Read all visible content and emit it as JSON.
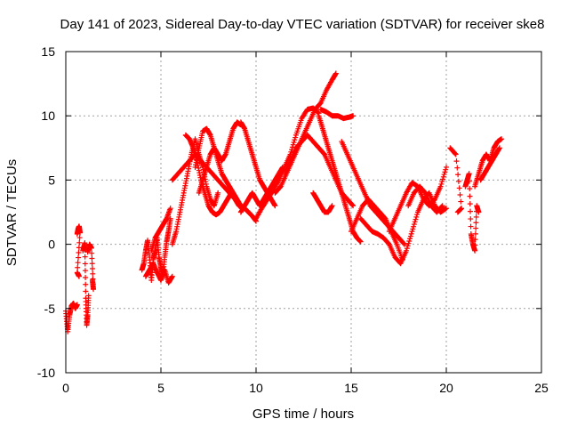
{
  "chart_data": {
    "type": "scatter",
    "title": "Day 141 of 2023, Sidereal Day-to-day VTEC variation (SDTVAR) for receiver ske8",
    "xlabel": "GPS time / hours",
    "ylabel": "SDTVAR / TECUs",
    "xlim": [
      0,
      25
    ],
    "ylim": [
      -10,
      15
    ],
    "xticks": [
      0,
      5,
      10,
      15,
      20,
      25
    ],
    "yticks": [
      -10,
      -5,
      0,
      5,
      10,
      15
    ],
    "grid": true,
    "marker": "+",
    "color": "#ff0000",
    "segments": [
      {
        "x": [
          0.0,
          0.1,
          0.2,
          0.3,
          0.4,
          0.5,
          0.6
        ],
        "y": [
          -5.2,
          -6.8,
          -5.5,
          -4.8,
          -4.6,
          -5.0,
          -4.7
        ]
      },
      {
        "x": [
          0.6,
          0.65,
          0.7,
          0.75,
          0.6,
          0.7
        ],
        "y": [
          0.8,
          1.2,
          1.4,
          0.9,
          -2.2,
          -2.5
        ]
      },
      {
        "x": [
          0.9,
          1.0,
          1.05,
          1.1,
          1.15,
          1.2
        ],
        "y": [
          -0.5,
          0.1,
          -4.2,
          -6.3,
          -5.5,
          -4.0
        ]
      },
      {
        "x": [
          1.15,
          1.25,
          1.35,
          1.45,
          1.4
        ],
        "y": [
          -0.6,
          0.0,
          -0.3,
          -3.5,
          -2.8
        ]
      },
      {
        "x": [
          4.0,
          4.1,
          4.2,
          4.3,
          4.4,
          4.5,
          4.6,
          4.7,
          4.8,
          4.9,
          5.0,
          5.1,
          5.2,
          5.3,
          5.4,
          5.5
        ],
        "y": [
          -2.0,
          -1.5,
          -0.5,
          0.3,
          -1.0,
          -2.8,
          -1.2,
          -0.5,
          0.5,
          -1.0,
          -1.8,
          -2.5,
          -1.0,
          0.2,
          1.0,
          2.0
        ]
      },
      {
        "x": [
          4.2,
          4.4,
          4.6,
          4.8,
          5.0,
          5.2,
          5.4,
          5.6
        ],
        "y": [
          -2.5,
          -2.0,
          -1.5,
          -2.2,
          -2.8,
          -2.0,
          -3.0,
          -2.5
        ]
      },
      {
        "x": [
          4.5,
          4.7,
          4.9,
          5.1,
          5.3,
          5.5
        ],
        "y": [
          -0.5,
          0.5,
          1.0,
          1.5,
          2.0,
          2.8
        ]
      },
      {
        "x": [
          5.6,
          5.8,
          6.0,
          6.2,
          6.4,
          6.6,
          6.8,
          7.0,
          7.2,
          7.4,
          7.6,
          7.8,
          8.0
        ],
        "y": [
          0.0,
          1.0,
          2.5,
          4.0,
          5.5,
          7.0,
          8.2,
          7.0,
          6.0,
          4.5,
          3.5,
          3.0,
          4.0
        ]
      },
      {
        "x": [
          5.6,
          5.9,
          6.2,
          6.5,
          6.8,
          7.1,
          7.4,
          7.7,
          8.0,
          8.3,
          8.6,
          8.9
        ],
        "y": [
          5.0,
          5.5,
          6.0,
          6.5,
          7.0,
          6.5,
          6.0,
          5.5,
          5.0,
          4.5,
          4.0,
          3.5
        ]
      },
      {
        "x": [
          6.3,
          6.5,
          6.7,
          6.9,
          7.1,
          7.3,
          7.5,
          7.7,
          7.9,
          8.1,
          8.3,
          8.5,
          8.7,
          8.9,
          9.1,
          9.3
        ],
        "y": [
          8.5,
          8.2,
          7.5,
          6.5,
          5.0,
          4.0,
          3.0,
          2.5,
          2.3,
          2.5,
          3.0,
          3.5,
          4.0,
          3.5,
          3.0,
          2.8
        ]
      },
      {
        "x": [
          6.8,
          7.0,
          7.2,
          7.4,
          7.6,
          7.8,
          8.0,
          8.2,
          8.4,
          8.6,
          8.8,
          9.0,
          9.2,
          9.4,
          9.6,
          9.8,
          10.0
        ],
        "y": [
          6.0,
          7.5,
          8.8,
          9.0,
          8.5,
          7.5,
          6.5,
          5.5,
          5.0,
          4.5,
          4.0,
          3.5,
          3.0,
          2.8,
          2.5,
          2.2,
          1.8
        ]
      },
      {
        "x": [
          7.0,
          7.2,
          7.4,
          7.6,
          7.8,
          8.0,
          8.2,
          8.4,
          8.6,
          8.8,
          9.0,
          9.2
        ],
        "y": [
          4.0,
          5.0,
          6.0,
          7.0,
          7.5,
          7.0,
          6.5,
          7.0,
          8.0,
          9.0,
          9.5,
          9.3
        ]
      },
      {
        "x": [
          9.2,
          9.4,
          9.6,
          9.8,
          10.0,
          10.2,
          10.4,
          10.6,
          10.8,
          11.0
        ],
        "y": [
          9.5,
          9.0,
          8.0,
          7.0,
          6.0,
          5.0,
          4.5,
          4.0,
          3.5,
          3.0
        ]
      },
      {
        "x": [
          9.2,
          9.4,
          9.6,
          9.8,
          10.0,
          10.2,
          10.4,
          10.6,
          10.8,
          11.0,
          11.2,
          11.4
        ],
        "y": [
          2.5,
          3.0,
          3.5,
          4.0,
          3.5,
          3.0,
          3.5,
          4.0,
          4.5,
          5.0,
          5.5,
          6.0
        ]
      },
      {
        "x": [
          10.0,
          10.3,
          10.6,
          10.9,
          11.2,
          11.5,
          11.8,
          12.1,
          12.4,
          12.7,
          13.0,
          13.3
        ],
        "y": [
          2.0,
          2.8,
          3.5,
          4.2,
          5.0,
          6.0,
          7.0,
          8.5,
          9.8,
          10.5,
          10.6,
          10.2
        ]
      },
      {
        "x": [
          11.0,
          11.3,
          11.6,
          11.9,
          12.2,
          12.5,
          12.8,
          13.1,
          13.4,
          13.7,
          14.0,
          14.2
        ],
        "y": [
          4.0,
          4.5,
          5.5,
          6.5,
          7.5,
          8.5,
          9.5,
          10.5,
          11.0,
          12.0,
          12.8,
          13.3
        ]
      },
      {
        "x": [
          11.5,
          11.8,
          12.1,
          12.4,
          12.7,
          13.0,
          13.3,
          13.6,
          13.9,
          14.2,
          14.5,
          14.8,
          15.1
        ],
        "y": [
          5.5,
          6.5,
          7.5,
          8.0,
          8.5,
          8.0,
          7.5,
          7.0,
          6.0,
          5.0,
          4.0,
          3.5,
          3.0
        ]
      },
      {
        "x": [
          13.4,
          13.7,
          14.0,
          14.3,
          14.6,
          14.9,
          15.1
        ],
        "y": [
          10.5,
          10.3,
          10.0,
          10.0,
          9.8,
          9.9,
          10.0
        ]
      },
      {
        "x": [
          13.3,
          13.5,
          13.7,
          13.9,
          14.1,
          14.3,
          14.5,
          14.7,
          14.9,
          15.1,
          15.3,
          15.5
        ],
        "y": [
          10.0,
          9.0,
          8.0,
          7.0,
          6.0,
          5.0,
          4.0,
          3.0,
          2.0,
          1.0,
          0.5,
          0.2
        ]
      },
      {
        "x": [
          13.0,
          13.2,
          13.4,
          13.6,
          13.8,
          14.0
        ],
        "y": [
          4.0,
          3.5,
          3.0,
          2.5,
          2.5,
          3.0
        ]
      },
      {
        "x": [
          14.5,
          14.8,
          15.1,
          15.4,
          15.7,
          16.0,
          16.3,
          16.6,
          16.9,
          17.2,
          17.5,
          17.8
        ],
        "y": [
          8.0,
          7.0,
          6.0,
          5.0,
          4.0,
          3.0,
          2.5,
          2.0,
          1.5,
          1.0,
          0.5,
          0.0
        ]
      },
      {
        "x": [
          15.0,
          15.3,
          15.6,
          15.9,
          16.2,
          16.5,
          16.8,
          17.1,
          17.4,
          17.7
        ],
        "y": [
          1.0,
          2.0,
          3.0,
          3.5,
          3.0,
          2.5,
          2.0,
          1.0,
          0.0,
          -1.2
        ]
      },
      {
        "x": [
          15.5,
          15.8,
          16.1,
          16.4,
          16.7,
          17.0,
          17.3,
          17.6,
          17.9,
          18.2,
          18.5,
          18.8,
          19.1,
          19.4,
          19.7,
          20.0
        ],
        "y": [
          2.0,
          1.5,
          1.0,
          0.8,
          0.5,
          0.0,
          -1.0,
          -1.5,
          -0.5,
          1.0,
          2.5,
          3.5,
          4.0,
          3.0,
          2.5,
          2.8
        ]
      },
      {
        "x": [
          17.0,
          17.3,
          17.6,
          17.9,
          18.2,
          18.5,
          18.8,
          19.1,
          19.4,
          19.7,
          20.0
        ],
        "y": [
          1.0,
          2.0,
          3.0,
          4.0,
          4.8,
          4.5,
          3.5,
          3.0,
          3.5,
          4.5,
          6.0
        ]
      },
      {
        "x": [
          18.0,
          18.3,
          18.6,
          18.9,
          19.2,
          19.5,
          19.8
        ],
        "y": [
          3.0,
          4.0,
          4.5,
          4.0,
          3.0,
          2.5,
          3.0
        ]
      },
      {
        "x": [
          20.2,
          20.5,
          20.8,
          20.6
        ],
        "y": [
          7.5,
          7.0,
          2.8,
          2.5
        ]
      },
      {
        "x": [
          21.0,
          21.1,
          21.2,
          21.3,
          21.4,
          21.5,
          21.6,
          21.7
        ],
        "y": [
          4.5,
          5.0,
          5.5,
          0.8,
          0.0,
          -0.5,
          3.0,
          2.5
        ]
      },
      {
        "x": [
          21.5,
          21.7,
          21.9,
          22.1,
          22.3,
          22.5,
          22.7,
          22.9
        ],
        "y": [
          4.5,
          5.5,
          6.5,
          7.0,
          6.5,
          7.5,
          8.0,
          8.2
        ]
      },
      {
        "x": [
          21.8,
          22.0,
          22.2,
          22.4,
          22.6,
          22.8
        ],
        "y": [
          5.0,
          5.5,
          6.0,
          6.5,
          7.0,
          7.5
        ]
      }
    ]
  }
}
